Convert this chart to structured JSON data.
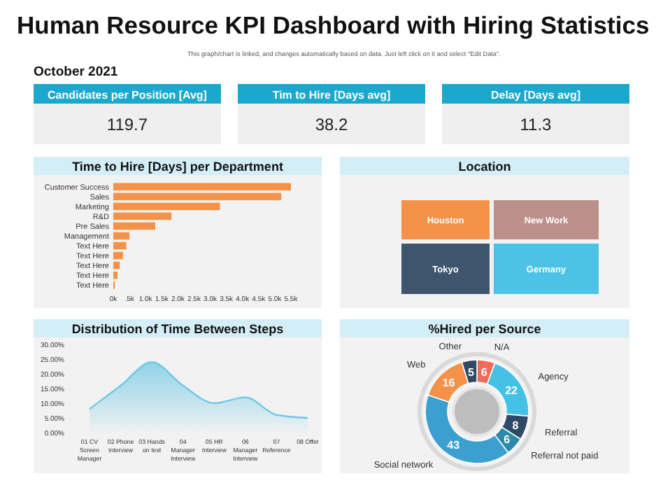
{
  "chart_data": [
    {
      "type": "other",
      "title": "Human Resource KPI Dashboard with Hiring Statistics",
      "subtitle": "October 2021",
      "annotations": [
        "This graph/chart is linked, and changes automatically based on data. Just left click on it and select \"Edit Data\"."
      ],
      "categories": [
        "Candidates per Position [Avg]",
        "Tim to Hire [Days avg]",
        "Delay [Days avg]"
      ],
      "values": [
        119.7,
        38.2,
        11.3
      ],
      "data_labels": true
    },
    {
      "type": "bar",
      "orientation": "horizontal",
      "title": "Time to Hire [Days] per Department",
      "categories": [
        "Customer Success",
        "Sales",
        "Marketing",
        "R&D",
        "Pre Sales",
        "Management",
        "Text Here",
        "Text Here",
        "Text Here",
        "Text Here",
        "Text Here"
      ],
      "values": [
        5.5,
        5.2,
        3.3,
        1.8,
        1.3,
        0.5,
        0.4,
        0.3,
        0.2,
        0.13,
        0.05
      ],
      "color": "#f4924a",
      "xlim": [
        0,
        5.5
      ],
      "xticks": [
        {
          "value": 0,
          "label": "0k"
        },
        {
          "value": 0.5,
          "label": ".5k"
        },
        {
          "value": 1,
          "label": "1.0k"
        },
        {
          "value": 1.5,
          "label": "1.5k"
        },
        {
          "value": 2,
          "label": "2.0k"
        },
        {
          "value": 2.5,
          "label": "2.5k"
        },
        {
          "value": 3,
          "label": "3.0k"
        },
        {
          "value": 3.5,
          "label": "3.5k"
        },
        {
          "value": 4,
          "label": "4.0k"
        },
        {
          "value": 4.5,
          "label": "4.5k"
        },
        {
          "value": 5,
          "label": "5.0k"
        },
        {
          "value": 5.5,
          "label": "5.5k"
        }
      ]
    },
    {
      "type": "other",
      "title": "Location",
      "categories": [
        "Houston",
        "New Work",
        "Tokyo",
        "Germany"
      ],
      "colors": [
        "#f4924a",
        "#bb8f8a",
        "#3f546d",
        "#4cc3e6"
      ]
    },
    {
      "type": "area",
      "title": "Distribution of Time Between Steps",
      "categories": [
        "01 CV Screen Manager",
        "02 Phone Interview",
        "03 Hands on test",
        "04 Manager Interview",
        "05 HR Interview",
        "06 Manager Interview",
        "07 Reference",
        "08 Offer"
      ],
      "values": [
        8,
        16,
        24,
        16,
        10,
        12,
        6,
        5
      ],
      "color": "#6fc8e6",
      "ylim": [
        0,
        30
      ],
      "yticks": [
        {
          "value": 0,
          "label": "0.00%"
        },
        {
          "value": 5,
          "label": "5.00%"
        },
        {
          "value": 10,
          "label": "10.00%"
        },
        {
          "value": 15,
          "label": "15.00%"
        },
        {
          "value": 20,
          "label": "20.00%"
        },
        {
          "value": 25,
          "label": "25.00%"
        },
        {
          "value": 30,
          "label": "30.00%"
        }
      ]
    },
    {
      "type": "donut",
      "title": "%Hired per Source",
      "categories": [
        "N/A",
        "Agency",
        "Referral",
        "Referral not paid",
        "Social network",
        "Web",
        "Other"
      ],
      "values": [
        6,
        22,
        8,
        6,
        43,
        16,
        5
      ],
      "colors": [
        "#f06b5a",
        "#45c1e6",
        "#2f4a66",
        "#2a8aa8",
        "#3ba0cf",
        "#f4924a",
        "#2f4a66"
      ],
      "data_labels": true
    }
  ]
}
